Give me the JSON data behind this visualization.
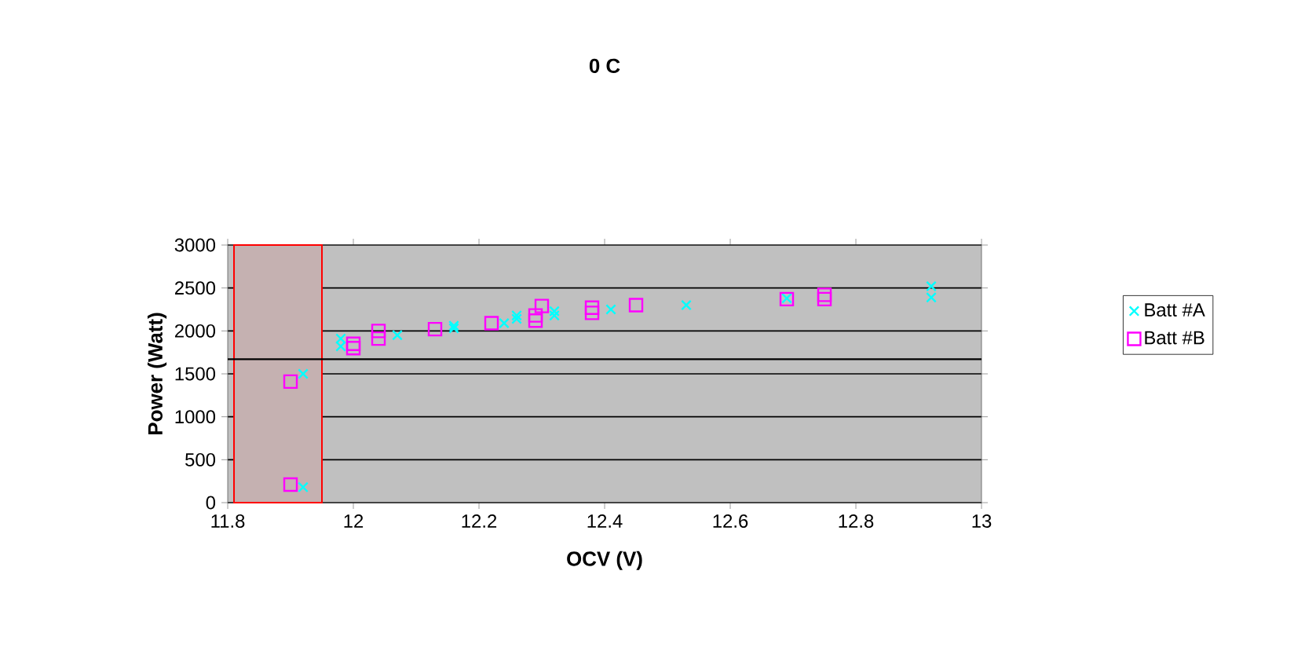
{
  "chart_data": {
    "type": "scatter",
    "title": "0 C",
    "xlabel": "OCV (V)",
    "ylabel": "Power (Watt)",
    "xlim": [
      11.8,
      13
    ],
    "xticks": [
      11.8,
      12,
      12.2,
      12.4,
      12.6,
      12.8,
      13
    ],
    "ylim": [
      0,
      3000
    ],
    "yticks": [
      0,
      500,
      1000,
      1500,
      2000,
      2500,
      3000
    ],
    "grid": "y",
    "legend": "right",
    "series": [
      {
        "name": "Batt #A",
        "color": "#00ffff",
        "marker": "cross",
        "x": [
          11.92,
          11.92,
          11.98,
          11.98,
          12.07,
          12.16,
          12.16,
          12.24,
          12.26,
          12.26,
          12.32,
          12.32,
          12.41,
          12.53,
          12.69,
          12.92,
          12.92
        ],
        "values": [
          1500,
          180,
          1910,
          1820,
          1950,
          2030,
          2060,
          2090,
          2180,
          2140,
          2230,
          2180,
          2250,
          2300,
          2380,
          2390,
          2520
        ]
      },
      {
        "name": "Batt #B",
        "color": "#ff00ff",
        "marker": "square",
        "x": [
          11.9,
          11.9,
          12.0,
          12.0,
          12.04,
          12.04,
          12.13,
          12.22,
          12.29,
          12.29,
          12.3,
          12.38,
          12.38,
          12.45,
          12.69,
          12.75,
          12.75
        ],
        "values": [
          1410,
          210,
          1850,
          1800,
          2000,
          1910,
          2020,
          2090,
          2180,
          2120,
          2290,
          2270,
          2210,
          2300,
          2370,
          2420,
          2370
        ]
      }
    ],
    "ref_lines": [
      {
        "axis": "y",
        "value": 1670,
        "color": "#000000"
      }
    ],
    "bands": [
      {
        "axis": "x",
        "from": 11.81,
        "to": 11.95,
        "color": "#ff0000"
      }
    ]
  }
}
